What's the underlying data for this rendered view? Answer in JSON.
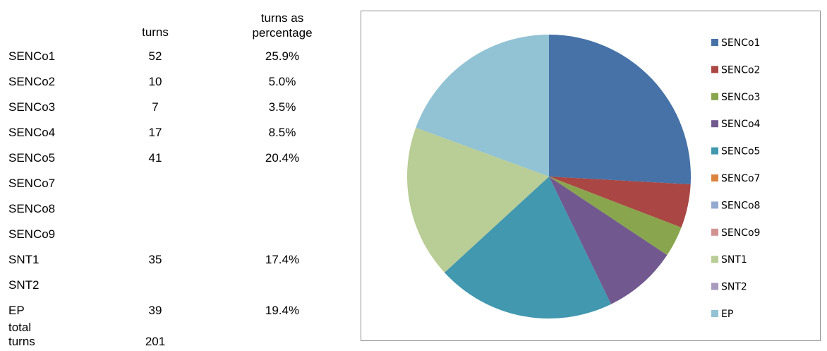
{
  "table": {
    "header_turns": "turns",
    "header_pct_line1": "turns as",
    "header_pct_line2": "percentage",
    "rows": [
      {
        "name": "SENCo1",
        "turns": "52",
        "pct": "25.9%"
      },
      {
        "name": "SENCo2",
        "turns": "10",
        "pct": "5.0%"
      },
      {
        "name": "SENCo3",
        "turns": "7",
        "pct": "3.5%"
      },
      {
        "name": "SENCo4",
        "turns": "17",
        "pct": "8.5%"
      },
      {
        "name": "SENCo5",
        "turns": "41",
        "pct": "20.4%"
      },
      {
        "name": "SENCo7",
        "turns": "",
        "pct": ""
      },
      {
        "name": "SENCo8",
        "turns": "",
        "pct": ""
      },
      {
        "name": "SENCo9",
        "turns": "",
        "pct": ""
      },
      {
        "name": "SNT1",
        "turns": "35",
        "pct": "17.4%"
      },
      {
        "name": "SNT2",
        "turns": "",
        "pct": ""
      },
      {
        "name": "EP",
        "turns": "39",
        "pct": "19.4%"
      }
    ],
    "total_label_line1": "total",
    "total_label_line2": "turns",
    "total_value": "201"
  },
  "chart_data": {
    "type": "pie",
    "categories": [
      "SENCo1",
      "SENCo2",
      "SENCo3",
      "SENCo4",
      "SENCo5",
      "SENCo7",
      "SENCo8",
      "SENCo9",
      "SNT1",
      "SNT2",
      "EP"
    ],
    "values": [
      52,
      10,
      7,
      17,
      41,
      0,
      0,
      0,
      35,
      0,
      39
    ],
    "colors": [
      "#4672a7",
      "#aa4643",
      "#89a54e",
      "#71588f",
      "#4198af",
      "#db843d",
      "#93a9cf",
      "#d19392",
      "#b9cd96",
      "#a99bbd",
      "#92c3d4"
    ],
    "legend_position": "right",
    "title": ""
  }
}
